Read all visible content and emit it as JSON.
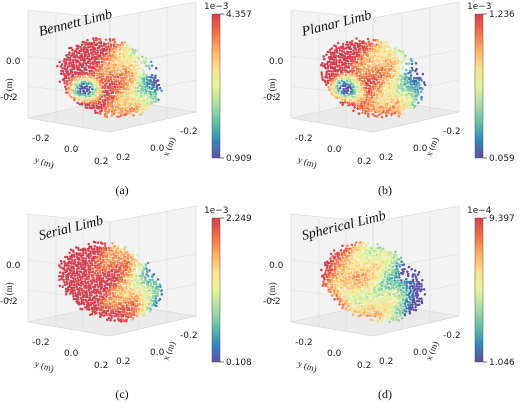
{
  "figure": {
    "colormap": [
      "#5e4fa2",
      "#3288bd",
      "#66c2a5",
      "#abdda4",
      "#e6f598",
      "#fee08b",
      "#fdae61",
      "#f46d43",
      "#d53e4f"
    ]
  },
  "chart_data": [
    {
      "type": "scatter",
      "title": "Bennett Limb",
      "caption": "(a)",
      "xlabel": "x (m)",
      "ylabel": "y (m)",
      "zlabel": "z (m)",
      "x_ticks": [
        "0.2",
        "0.0",
        "-0.2"
      ],
      "y_ticks": [
        "-0.2",
        "0.0",
        "0.2"
      ],
      "z_ticks": [
        "0.0",
        "-0.2"
      ],
      "colorbar": {
        "exponent": "1e−3",
        "max": "4.357",
        "min": "0.909",
        "max_value": 4.357,
        "min_value": 0.909
      },
      "pattern": {
        "red_bias": 0.35,
        "dark_spot": 0.9
      }
    },
    {
      "type": "scatter",
      "title": "Planar Limb",
      "caption": "(b)",
      "xlabel": "x (m)",
      "ylabel": "y (m)",
      "zlabel": "z (m)",
      "x_ticks": [
        "0.2",
        "0.0",
        "-0.2"
      ],
      "y_ticks": [
        "-0.2",
        "0.0",
        "0.2"
      ],
      "z_ticks": [
        "0.0",
        "-0.2"
      ],
      "colorbar": {
        "exponent": "1e−3",
        "max": "1.236",
        "min": "0.059",
        "max_value": 1.236,
        "min_value": 0.059
      },
      "pattern": {
        "red_bias": 0.3,
        "dark_spot": 0.9
      }
    },
    {
      "type": "scatter",
      "title": "Serial Limb",
      "caption": "(c)",
      "xlabel": "x (m)",
      "ylabel": "y (m)",
      "zlabel": "z (m)",
      "x_ticks": [
        "0.2",
        "0.0",
        "-0.2"
      ],
      "y_ticks": [
        "-0.2",
        "0.0",
        "0.2"
      ],
      "z_ticks": [
        "0.0",
        "-0.2"
      ],
      "colorbar": {
        "exponent": "1e−3",
        "max": "2.249",
        "min": "0.108",
        "max_value": 2.249,
        "min_value": 0.108
      },
      "pattern": {
        "red_bias": 0.4,
        "dark_spot": 0.15
      }
    },
    {
      "type": "scatter",
      "title": "Spherical Limb",
      "caption": "(d)",
      "xlabel": "x (m)",
      "ylabel": "y (m)",
      "zlabel": "z (m)",
      "x_ticks": [
        "0.2",
        "0.0",
        "-0.2"
      ],
      "y_ticks": [
        "-0.2",
        "0.0",
        "0.2"
      ],
      "z_ticks": [
        "0.0",
        "-0.2"
      ],
      "colorbar": {
        "exponent": "1e−4",
        "max": "9.397",
        "min": "1.046",
        "max_value": 9.397,
        "min_value": 1.046
      },
      "pattern": {
        "red_bias": 0.05,
        "dark_spot": 0.3
      }
    }
  ]
}
